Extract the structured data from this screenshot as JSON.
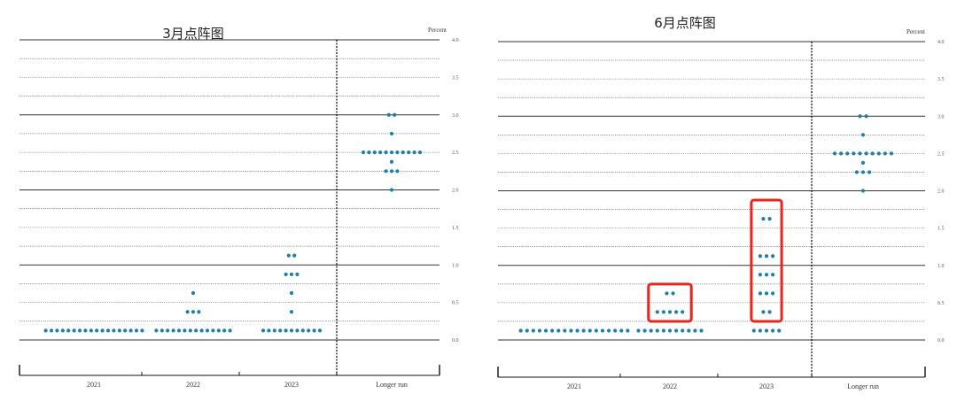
{
  "chart_data": [
    {
      "type": "scatter",
      "title": "3月点阵图",
      "unit_label": "Percent",
      "categories": [
        "2021",
        "2022",
        "2023",
        "Longer run"
      ],
      "ylim": [
        -0.5,
        4.0
      ],
      "yticks": [
        "4.0",
        "3.5",
        "3.0",
        "2.5",
        "2.0",
        "1.5",
        "1.0",
        "0.5",
        "0.0"
      ],
      "grid": true,
      "dots": [
        {
          "category": "2021",
          "values": [
            {
              "y": 0.125,
              "count": 18
            }
          ]
        },
        {
          "category": "2022",
          "values": [
            {
              "y": 0.125,
              "count": 14
            },
            {
              "y": 0.375,
              "count": 3
            },
            {
              "y": 0.625,
              "count": 1
            }
          ]
        },
        {
          "category": "2023",
          "values": [
            {
              "y": 0.125,
              "count": 11
            },
            {
              "y": 0.375,
              "count": 1
            },
            {
              "y": 0.625,
              "count": 1
            },
            {
              "y": 0.875,
              "count": 3
            },
            {
              "y": 1.125,
              "count": 2
            }
          ]
        },
        {
          "category": "Longer run",
          "values": [
            {
              "y": 2.0,
              "count": 1
            },
            {
              "y": 2.25,
              "count": 3
            },
            {
              "y": 2.375,
              "count": 1
            },
            {
              "y": 2.5,
              "count": 11
            },
            {
              "y": 2.75,
              "count": 1
            },
            {
              "y": 3.0,
              "count": 2
            }
          ]
        }
      ],
      "highlights": []
    },
    {
      "type": "scatter",
      "title": "6月点阵图",
      "unit_label": "Percent",
      "categories": [
        "2021",
        "2022",
        "2023",
        "Longer run"
      ],
      "ylim": [
        -0.5,
        4.0
      ],
      "yticks": [
        "4.0",
        "3.5",
        "3.0",
        "2.5",
        "2.0",
        "1.5",
        "1.0",
        "0.5",
        "0.0"
      ],
      "grid": true,
      "dots": [
        {
          "category": "2021",
          "values": [
            {
              "y": 0.125,
              "count": 18
            }
          ]
        },
        {
          "category": "2022",
          "values": [
            {
              "y": 0.125,
              "count": 11
            },
            {
              "y": 0.375,
              "count": 5
            },
            {
              "y": 0.625,
              "count": 2
            }
          ]
        },
        {
          "category": "2023",
          "values": [
            {
              "y": 0.125,
              "count": 5
            },
            {
              "y": 0.375,
              "count": 2
            },
            {
              "y": 0.625,
              "count": 3
            },
            {
              "y": 0.875,
              "count": 3
            },
            {
              "y": 1.125,
              "count": 3
            },
            {
              "y": 1.625,
              "count": 2
            }
          ]
        },
        {
          "category": "Longer run",
          "values": [
            {
              "y": 2.0,
              "count": 1
            },
            {
              "y": 2.25,
              "count": 3
            },
            {
              "y": 2.375,
              "count": 1
            },
            {
              "y": 2.5,
              "count": 10
            },
            {
              "y": 2.75,
              "count": 1
            },
            {
              "y": 3.0,
              "count": 2
            }
          ]
        }
      ],
      "highlights": [
        {
          "category": "2022",
          "y_range": [
            0.25,
            0.75
          ]
        },
        {
          "category": "2023",
          "y_range": [
            0.25,
            1.875
          ]
        }
      ]
    }
  ],
  "colors": {
    "dot": "#1f7fa8",
    "highlight": "#e8241b",
    "grid": "#555555"
  }
}
